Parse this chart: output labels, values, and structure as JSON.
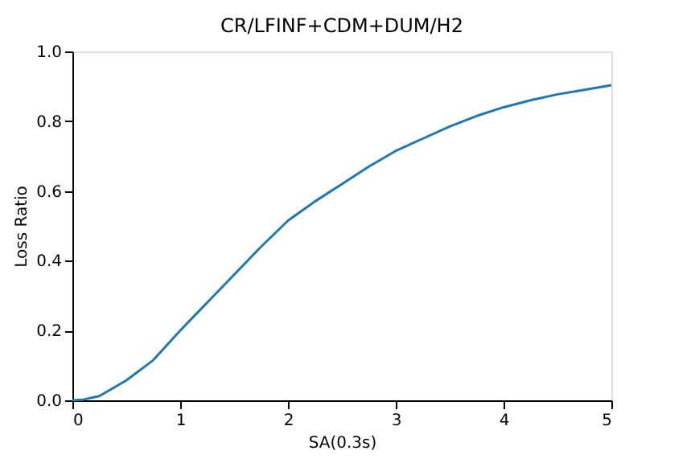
{
  "chart_data": {
    "type": "line",
    "title": "CR/LFINF+CDM+DUM/H2",
    "xlabel": "SA(0.3s)",
    "ylabel": "Loss Ratio",
    "x": [
      0,
      0.1,
      0.25,
      0.5,
      0.75,
      1,
      1.25,
      1.5,
      1.75,
      2,
      2.25,
      2.5,
      2.75,
      3,
      3.25,
      3.5,
      3.75,
      4,
      4.25,
      4.5,
      4.75,
      5
    ],
    "series": [
      {
        "color": "#1f77b4",
        "values": [
          0,
          0.002,
          0.012,
          0.057,
          0.115,
          0.2,
          0.28,
          0.36,
          0.44,
          0.515,
          0.57,
          0.62,
          0.67,
          0.715,
          0.75,
          0.785,
          0.815,
          0.84,
          0.86,
          0.877,
          0.89,
          0.903
        ]
      }
    ],
    "xlim": [
      0,
      5
    ],
    "xticks": [
      0,
      1,
      2,
      3,
      4,
      5
    ],
    "ylim": [
      0,
      1
    ],
    "yticks": [
      {
        "value": 0,
        "label": "0.0"
      },
      {
        "value": 0.2,
        "label": "0.2"
      },
      {
        "value": 0.4,
        "label": "0.4"
      },
      {
        "value": 0.6,
        "label": "0.6"
      },
      {
        "value": 0.8,
        "label": "0.8"
      },
      {
        "value": 1,
        "label": "1.0"
      }
    ],
    "line_style": "solid",
    "grid": false,
    "legend": false
  }
}
